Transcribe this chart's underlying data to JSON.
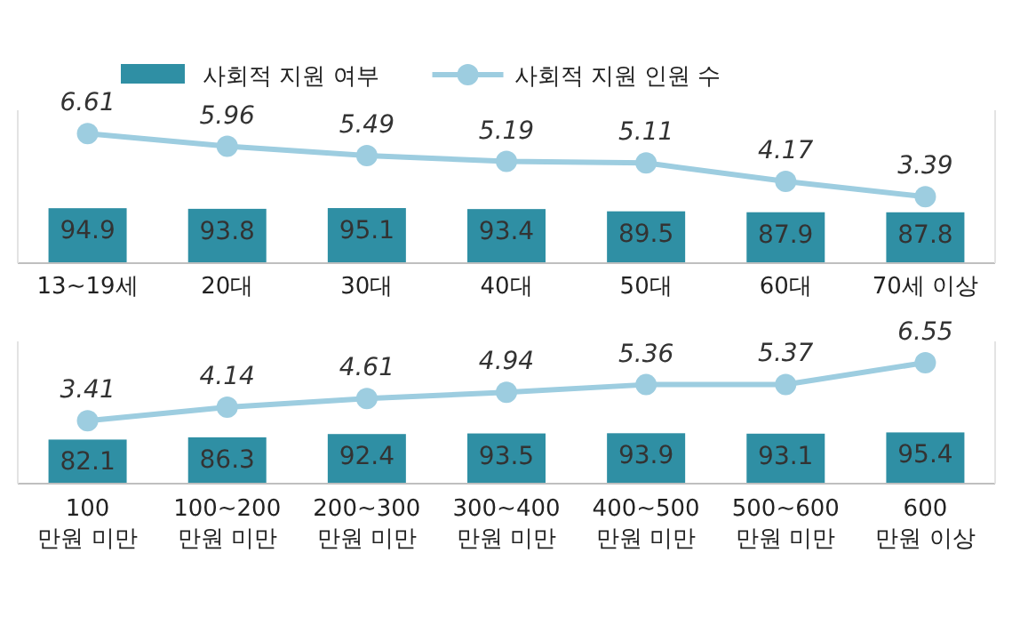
{
  "chart_data": [
    {
      "type": "bar",
      "categories": [
        "13~19세",
        "20대",
        "30대",
        "40대",
        "50대",
        "60대",
        "70세 이상"
      ],
      "legend": "top",
      "data_labels": true,
      "ylim": [
        0,
        264
      ],
      "y2lim": [
        0,
        7.8
      ],
      "series": [
        {
          "name": "사회적 지원 여부",
          "color": "#2f8fa4",
          "values": [
            94.9,
            93.8,
            95.1,
            93.4,
            89.5,
            87.9,
            87.8
          ]
        },
        {
          "name": "사회적 지원 인원 수",
          "type": "line",
          "axis": "y2",
          "marker": "circle",
          "color": "#9dcde0",
          "values": [
            6.61,
            5.96,
            5.49,
            5.19,
            5.11,
            4.17,
            3.39
          ]
        }
      ]
    },
    {
      "type": "bar",
      "categories": [
        "100\n만원 미만",
        "100~200\n만원 미만",
        "200~300\n만원 미만",
        "300~400\n만원 미만",
        "400~500\n만원 미만",
        "500~600\n만원 미만",
        "600\n만원 이상"
      ],
      "data_labels": true,
      "ylim": [
        0,
        265
      ],
      "y2lim": [
        0,
        7.7
      ],
      "series": [
        {
          "color": "#2f8fa4",
          "values": [
            82.1,
            86.3,
            92.4,
            93.5,
            93.9,
            93.1,
            95.4
          ]
        },
        {
          "type": "line",
          "axis": "y2",
          "marker": "circle",
          "color": "#9dcde0",
          "values": [
            3.41,
            4.14,
            4.61,
            4.94,
            5.36,
            5.37,
            6.55
          ]
        }
      ]
    }
  ]
}
